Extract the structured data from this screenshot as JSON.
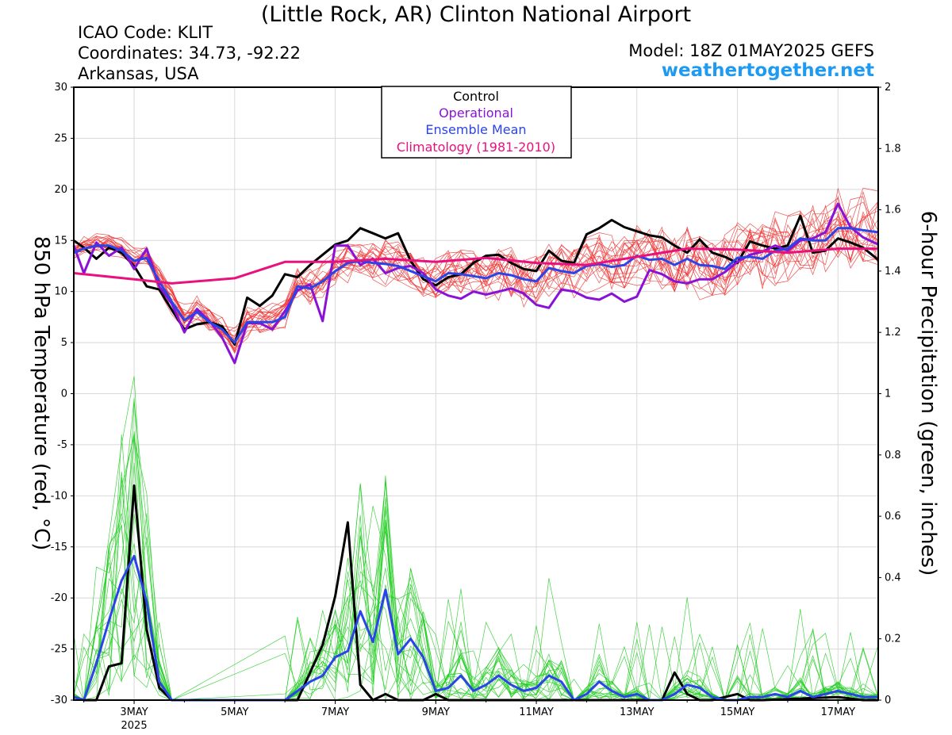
{
  "header": {
    "title": "(Little Rock, AR) Clinton National Airport",
    "icao": "ICAO Code: KLIT",
    "coords": "Coordinates: 34.73, -92.22",
    "region": "Arkansas, USA",
    "model": "Model: 18Z 01MAY2025 GEFS",
    "brand": "weathertogether.net"
  },
  "chart_data": {
    "type": "line",
    "ylabel": "850 hPa Temperature (red, °C)",
    "y2label": "6-hour Precipitation (green, inches)",
    "ylim": [
      -30,
      30
    ],
    "y2lim": [
      0,
      2
    ],
    "xlim_days": [
      1.8,
      17.8
    ],
    "yticks": [
      "30",
      "25",
      "20",
      "15",
      "10",
      "5",
      "0",
      "-5",
      "-10",
      "-15",
      "-20",
      "-25",
      "-30"
    ],
    "y2ticks": [
      "2",
      "1.8",
      "1.6",
      "1.4",
      "1.2",
      "1",
      "0.8",
      "0.6",
      "0.4",
      "0.2",
      "0"
    ],
    "xticks": [
      {
        "day": 3,
        "label": "3MAY",
        "sub": "2025"
      },
      {
        "day": 5,
        "label": "5MAY",
        "sub": ""
      },
      {
        "day": 7,
        "label": "7MAY",
        "sub": ""
      },
      {
        "day": 9,
        "label": "9MAY",
        "sub": ""
      },
      {
        "day": 11,
        "label": "11MAY",
        "sub": ""
      },
      {
        "day": 13,
        "label": "13MAY",
        "sub": ""
      },
      {
        "day": 15,
        "label": "15MAY",
        "sub": ""
      },
      {
        "day": 17,
        "label": "17MAY",
        "sub": ""
      }
    ],
    "legend": [
      {
        "label": "Control",
        "color": "#000000"
      },
      {
        "label": "Operational",
        "color": "#8a11d6"
      },
      {
        "label": "Ensemble Mean",
        "color": "#2b44e8"
      },
      {
        "label": "Climatology (1981-2010)",
        "color": "#e8117e"
      }
    ],
    "colors": {
      "members_temp": "#ee3333",
      "members_precip": "#22cc22",
      "control": "#000000",
      "operational": "#8a11d6",
      "mean": "#2b44e8",
      "climatology": "#e8117e"
    },
    "series": [
      {
        "name": "Control",
        "kind": "temp",
        "x": [
          1.8,
          2.0,
          2.25,
          2.5,
          2.75,
          3.0,
          3.25,
          3.5,
          3.75,
          4.0,
          4.25,
          4.5,
          4.75,
          5.0,
          5.25,
          5.5,
          5.75,
          6.0,
          6.25,
          6.5,
          6.75,
          7.0,
          7.25,
          7.5,
          7.75,
          8.0,
          8.25,
          8.5,
          8.75,
          9.0,
          9.25,
          9.5,
          9.75,
          10.0,
          10.25,
          10.5,
          10.75,
          11.0,
          11.25,
          11.5,
          11.75,
          12.0,
          12.25,
          12.5,
          12.75,
          13.0,
          13.25,
          13.5,
          13.75,
          14.0,
          14.25,
          14.5,
          14.75,
          15.0,
          15.25,
          15.5,
          15.75,
          16.0,
          16.25,
          16.5,
          16.75,
          17.0,
          17.25,
          17.5,
          17.8
        ],
        "y": [
          15,
          14.3,
          13.2,
          14.3,
          13.8,
          12.5,
          10.5,
          10.2,
          8.2,
          6.3,
          6.8,
          7.0,
          6.6,
          4.8,
          9.4,
          8.6,
          9.6,
          11.7,
          11.4,
          12.6,
          13.6,
          14.6,
          15.0,
          16.2,
          15.7,
          15.2,
          15.7,
          13.0,
          11.2,
          10.6,
          11.4,
          11.7,
          12.8,
          13.5,
          13.6,
          12.8,
          12.2,
          12.0,
          14.0,
          13.0,
          12.8,
          15.6,
          16.2,
          17.0,
          16.3,
          15.9,
          15.5,
          15.3,
          14.5,
          13.8,
          15.1,
          13.8,
          13.4,
          12.8,
          14.9,
          14.5,
          14.2,
          14.5,
          17.4,
          13.8,
          14.0,
          15.2,
          14.8,
          14.3,
          13.1
        ]
      },
      {
        "name": "Operational",
        "kind": "temp",
        "x": [
          1.8,
          2.0,
          2.25,
          2.5,
          2.75,
          3.0,
          3.25,
          3.5,
          3.75,
          4.0,
          4.25,
          4.5,
          4.75,
          5.0,
          5.25,
          5.5,
          5.75,
          6.0,
          6.25,
          6.5,
          6.75,
          7.0,
          7.25,
          7.5,
          7.75,
          8.0,
          8.25,
          8.5,
          8.75,
          9.0,
          9.25,
          9.5,
          9.75,
          10.0,
          10.25,
          10.5,
          10.75,
          11.0,
          11.25,
          11.5,
          11.75,
          12.0,
          12.25,
          12.5,
          12.75,
          13.0,
          13.25,
          13.5,
          13.75,
          14.0,
          14.25,
          14.5,
          14.75,
          15.0,
          15.25,
          15.5,
          15.75,
          16.0,
          16.25,
          16.5,
          16.75,
          17.0,
          17.25,
          17.5,
          17.8
        ],
        "y": [
          14.5,
          11.8,
          14.8,
          13.5,
          14.3,
          12.2,
          14.2,
          10.5,
          8.8,
          6.0,
          8.3,
          7.1,
          5.5,
          3.0,
          6.9,
          6.9,
          6.3,
          8.1,
          10.1,
          10.7,
          7.1,
          14.5,
          14.5,
          12.6,
          13.2,
          11.8,
          12.3,
          12.5,
          11.8,
          10.2,
          9.6,
          9.3,
          10.0,
          9.7,
          10.0,
          10.3,
          9.8,
          8.7,
          8.4,
          10.2,
          10.0,
          9.4,
          9.2,
          9.8,
          9.0,
          9.5,
          12.1,
          11.7,
          11.0,
          10.8,
          11.2,
          11.2,
          11.9,
          12.9,
          13.6,
          13.9,
          14.5,
          14.0,
          15.0,
          15.2,
          15.8,
          18.6,
          16.3,
          15.3,
          14.6
        ]
      },
      {
        "name": "Ensemble Mean",
        "kind": "temp",
        "x": [
          1.8,
          2.0,
          2.25,
          2.5,
          2.75,
          3.0,
          3.25,
          3.5,
          3.75,
          4.0,
          4.25,
          4.5,
          4.75,
          5.0,
          5.25,
          5.5,
          5.75,
          6.0,
          6.25,
          6.5,
          6.75,
          7.0,
          7.25,
          7.5,
          7.75,
          8.0,
          8.25,
          8.5,
          8.75,
          9.0,
          9.25,
          9.5,
          9.75,
          10.0,
          10.25,
          10.5,
          10.75,
          11.0,
          11.25,
          11.5,
          11.75,
          12.0,
          12.25,
          12.5,
          12.75,
          13.0,
          13.25,
          13.5,
          13.75,
          14.0,
          14.25,
          14.5,
          14.75,
          15.0,
          15.25,
          15.5,
          15.75,
          16.0,
          16.25,
          16.5,
          16.75,
          17.0,
          17.25,
          17.5,
          17.8
        ],
        "y": [
          13.8,
          14.2,
          14.5,
          14.5,
          14.0,
          13.0,
          13.3,
          11.0,
          9.0,
          7.2,
          8.0,
          7.0,
          6.3,
          5.0,
          7.0,
          7.0,
          7.0,
          7.5,
          10.5,
          10.3,
          11.0,
          12.0,
          12.8,
          13.0,
          12.8,
          12.7,
          12.5,
          12.0,
          11.5,
          11.0,
          11.8,
          11.7,
          11.5,
          11.3,
          11.8,
          11.6,
          11.2,
          11.0,
          12.3,
          12.0,
          11.8,
          12.5,
          12.7,
          12.4,
          12.6,
          13.5,
          13.1,
          13.2,
          12.6,
          13.2,
          12.6,
          12.5,
          12.2,
          13.3,
          13.4,
          13.2,
          14.0,
          14.2,
          15.2,
          15.0,
          15.0,
          16.2,
          16.2,
          16.0,
          15.8
        ]
      },
      {
        "name": "Climatology (1981-2010)",
        "kind": "temp",
        "x": [
          1.8,
          3.0,
          3.75,
          5.0,
          6.0,
          7.0,
          8.0,
          9.0,
          10.0,
          11.0,
          12.0,
          13.0,
          14.0,
          15.0,
          16.0,
          17.0,
          17.8
        ],
        "y": [
          11.8,
          11.2,
          10.8,
          11.3,
          12.9,
          12.9,
          13.2,
          12.9,
          13.3,
          12.8,
          12.6,
          13.4,
          14.2,
          14.1,
          13.8,
          14.2,
          14.2
        ]
      },
      {
        "name": "Control",
        "kind": "precip",
        "x": [
          1.8,
          2.0,
          2.25,
          2.5,
          2.75,
          3.0,
          3.25,
          3.5,
          3.75,
          4.0,
          6.25,
          6.5,
          6.75,
          7.0,
          7.25,
          7.5,
          7.75,
          8.0,
          8.25,
          8.5,
          8.75,
          9.0,
          9.25,
          9.5,
          13.5,
          13.75,
          14.0,
          14.25,
          14.5,
          15.0,
          15.25,
          15.5,
          17.0,
          17.5,
          17.8
        ],
        "y": [
          0.01,
          0.0,
          0.0,
          0.11,
          0.12,
          0.7,
          0.23,
          0.04,
          0.0,
          0.0,
          0.0,
          0.09,
          0.18,
          0.34,
          0.58,
          0.05,
          0.0,
          0.02,
          0.0,
          0.0,
          0.0,
          0.02,
          0.0,
          0.0,
          0.0,
          0.09,
          0.02,
          0.0,
          0.0,
          0.02,
          0.0,
          0.0,
          0.01,
          0.0,
          0.0
        ]
      },
      {
        "name": "Ensemble Mean",
        "kind": "precip",
        "x": [
          1.8,
          2.0,
          2.25,
          2.5,
          2.75,
          3.0,
          3.25,
          3.5,
          3.75,
          6.0,
          6.25,
          6.5,
          6.75,
          7.0,
          7.25,
          7.5,
          7.75,
          8.0,
          8.25,
          8.5,
          8.75,
          9.0,
          9.25,
          9.5,
          9.75,
          10.0,
          10.25,
          10.5,
          10.75,
          11.0,
          11.25,
          11.5,
          11.75,
          12.0,
          12.25,
          12.5,
          12.75,
          13.0,
          13.25,
          13.5,
          13.75,
          14.0,
          14.25,
          14.5,
          14.75,
          15.0,
          15.25,
          15.5,
          15.75,
          16.0,
          16.25,
          16.5,
          16.75,
          17.0,
          17.25,
          17.5,
          17.8
        ],
        "y": [
          0.01,
          0.0,
          0.12,
          0.26,
          0.39,
          0.47,
          0.32,
          0.06,
          0.0,
          0.0,
          0.03,
          0.06,
          0.08,
          0.14,
          0.16,
          0.29,
          0.19,
          0.36,
          0.15,
          0.2,
          0.14,
          0.03,
          0.04,
          0.08,
          0.03,
          0.05,
          0.08,
          0.05,
          0.03,
          0.04,
          0.08,
          0.06,
          0.0,
          0.02,
          0.06,
          0.03,
          0.01,
          0.02,
          0.0,
          0.0,
          0.02,
          0.05,
          0.04,
          0.01,
          0.0,
          0.0,
          0.01,
          0.01,
          0.02,
          0.01,
          0.03,
          0.01,
          0.02,
          0.03,
          0.02,
          0.01,
          0.01
        ]
      }
    ]
  }
}
